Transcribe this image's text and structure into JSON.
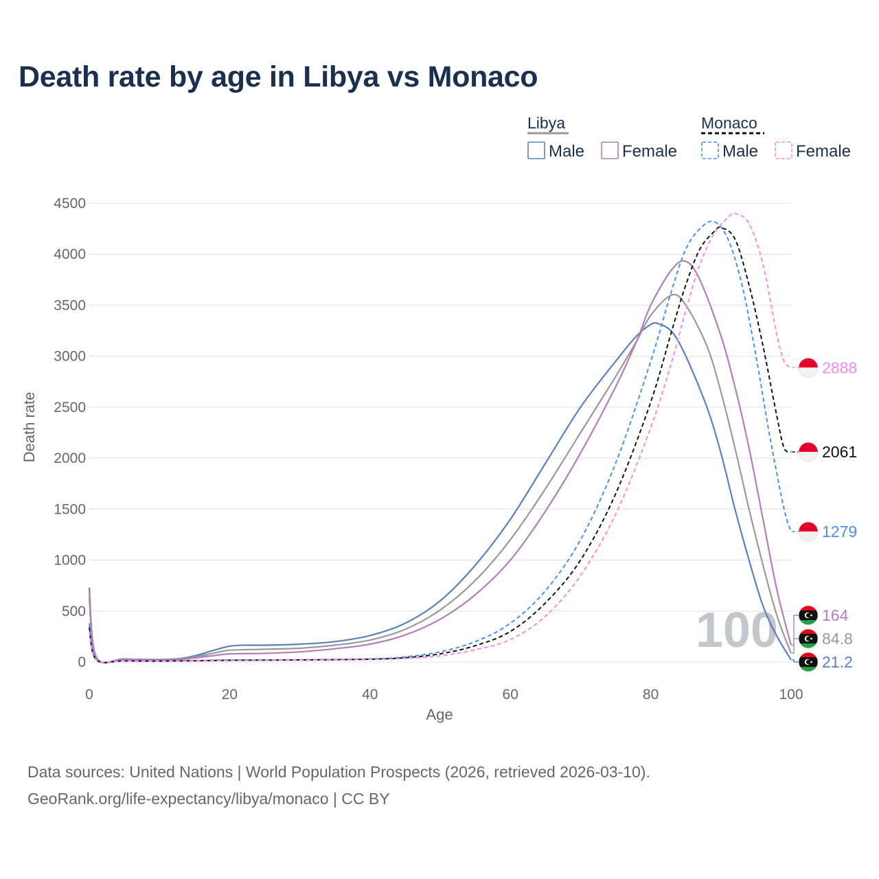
{
  "title": "Death rate by age in Libya vs Monaco",
  "legend": {
    "groups": [
      {
        "name": "Libya",
        "line_color": "#999999",
        "dashed": false,
        "items": [
          {
            "label": "Male",
            "color": "#5b80bc"
          },
          {
            "label": "Female",
            "color": "#b07fb8"
          }
        ]
      },
      {
        "name": "Monaco",
        "line_color": "#111111",
        "dashed": true,
        "items": [
          {
            "label": "Male",
            "color": "#4c8fe8"
          },
          {
            "label": "Female",
            "color": "#f28ce6"
          }
        ]
      }
    ]
  },
  "watermark": "100",
  "footer": {
    "line1": "Data sources: United Nations | World Population Prospects (2026, retrieved 2026-03-10).",
    "line2": "GeoRank.org/life-expectancy/libya/monaco | CC BY"
  },
  "chart_data": {
    "type": "line",
    "xlabel": "Age",
    "ylabel": "Death rate",
    "xlim": [
      0,
      100
    ],
    "ylim": [
      0,
      4500
    ],
    "xticks": [
      0,
      20,
      40,
      60,
      80,
      100
    ],
    "yticks": [
      0,
      500,
      1000,
      1500,
      2000,
      2500,
      3000,
      3500,
      4000,
      4500
    ],
    "grid": true,
    "series": [
      {
        "name": "Libya Male",
        "color": "#5b80bc",
        "dashed": false,
        "end_label": "21.2",
        "flag": "libya",
        "points": [
          [
            0,
            730
          ],
          [
            1,
            50
          ],
          [
            5,
            30
          ],
          [
            10,
            25
          ],
          [
            13,
            35
          ],
          [
            15,
            60
          ],
          [
            18,
            120
          ],
          [
            20,
            155
          ],
          [
            22,
            165
          ],
          [
            25,
            165
          ],
          [
            30,
            175
          ],
          [
            35,
            200
          ],
          [
            40,
            260
          ],
          [
            45,
            380
          ],
          [
            50,
            600
          ],
          [
            55,
            950
          ],
          [
            60,
            1400
          ],
          [
            65,
            1950
          ],
          [
            70,
            2500
          ],
          [
            75,
            2950
          ],
          [
            78,
            3200
          ],
          [
            80,
            3310
          ],
          [
            81,
            3320
          ],
          [
            83,
            3240
          ],
          [
            85,
            3000
          ],
          [
            88,
            2500
          ],
          [
            90,
            2050
          ],
          [
            92,
            1500
          ],
          [
            94,
            1000
          ],
          [
            96,
            550
          ],
          [
            98,
            250
          ],
          [
            100,
            21.2
          ]
        ]
      },
      {
        "name": "Libya Total",
        "color": "#999999",
        "dashed": false,
        "end_label": "84.8",
        "flag": "libya",
        "points": [
          [
            0,
            680
          ],
          [
            1,
            45
          ],
          [
            5,
            28
          ],
          [
            10,
            22
          ],
          [
            13,
            30
          ],
          [
            15,
            50
          ],
          [
            18,
            90
          ],
          [
            20,
            115
          ],
          [
            25,
            125
          ],
          [
            30,
            135
          ],
          [
            35,
            165
          ],
          [
            40,
            215
          ],
          [
            45,
            320
          ],
          [
            50,
            510
          ],
          [
            55,
            800
          ],
          [
            60,
            1200
          ],
          [
            65,
            1700
          ],
          [
            70,
            2250
          ],
          [
            75,
            2800
          ],
          [
            78,
            3150
          ],
          [
            80,
            3400
          ],
          [
            83,
            3600
          ],
          [
            85,
            3500
          ],
          [
            88,
            3100
          ],
          [
            90,
            2650
          ],
          [
            92,
            2100
          ],
          [
            94,
            1500
          ],
          [
            96,
            950
          ],
          [
            98,
            450
          ],
          [
            100,
            84.8
          ]
        ]
      },
      {
        "name": "Libya Female",
        "color": "#b07fb8",
        "dashed": false,
        "end_label": "164",
        "flag": "libya",
        "points": [
          [
            0,
            630
          ],
          [
            1,
            40
          ],
          [
            5,
            25
          ],
          [
            10,
            20
          ],
          [
            13,
            25
          ],
          [
            15,
            40
          ],
          [
            18,
            65
          ],
          [
            20,
            80
          ],
          [
            25,
            85
          ],
          [
            30,
            100
          ],
          [
            35,
            130
          ],
          [
            40,
            175
          ],
          [
            45,
            265
          ],
          [
            50,
            420
          ],
          [
            55,
            660
          ],
          [
            60,
            1000
          ],
          [
            65,
            1480
          ],
          [
            70,
            2050
          ],
          [
            75,
            2700
          ],
          [
            78,
            3150
          ],
          [
            80,
            3500
          ],
          [
            83,
            3850
          ],
          [
            85,
            3930
          ],
          [
            87,
            3750
          ],
          [
            90,
            3200
          ],
          [
            92,
            2700
          ],
          [
            94,
            2100
          ],
          [
            96,
            1400
          ],
          [
            98,
            700
          ],
          [
            100,
            164
          ]
        ]
      },
      {
        "name": "Monaco Male",
        "color": "#4c8fe8",
        "dashed": true,
        "end_label": "1279",
        "flag": "monaco",
        "points": [
          [
            0,
            380
          ],
          [
            1,
            25
          ],
          [
            5,
            12
          ],
          [
            10,
            10
          ],
          [
            15,
            14
          ],
          [
            20,
            20
          ],
          [
            30,
            22
          ],
          [
            40,
            30
          ],
          [
            45,
            50
          ],
          [
            50,
            100
          ],
          [
            55,
            200
          ],
          [
            60,
            380
          ],
          [
            65,
            700
          ],
          [
            70,
            1200
          ],
          [
            75,
            1950
          ],
          [
            80,
            2950
          ],
          [
            83,
            3650
          ],
          [
            85,
            4050
          ],
          [
            87,
            4250
          ],
          [
            89,
            4320
          ],
          [
            91,
            4150
          ],
          [
            93,
            3700
          ],
          [
            95,
            3000
          ],
          [
            97,
            2200
          ],
          [
            99,
            1500
          ],
          [
            100,
            1279
          ]
        ]
      },
      {
        "name": "Monaco Total",
        "color": "#111111",
        "dashed": true,
        "end_label": "2061",
        "flag": "monaco",
        "points": [
          [
            0,
            340
          ],
          [
            1,
            22
          ],
          [
            5,
            11
          ],
          [
            10,
            9
          ],
          [
            15,
            12
          ],
          [
            20,
            17
          ],
          [
            30,
            20
          ],
          [
            40,
            27
          ],
          [
            45,
            42
          ],
          [
            50,
            80
          ],
          [
            55,
            160
          ],
          [
            60,
            300
          ],
          [
            65,
            580
          ],
          [
            70,
            1000
          ],
          [
            75,
            1650
          ],
          [
            80,
            2550
          ],
          [
            83,
            3250
          ],
          [
            85,
            3700
          ],
          [
            87,
            4050
          ],
          [
            89,
            4220
          ],
          [
            90,
            4260
          ],
          [
            92,
            4150
          ],
          [
            94,
            3700
          ],
          [
            96,
            3100
          ],
          [
            98,
            2400
          ],
          [
            99,
            2100
          ],
          [
            100,
            2061
          ]
        ]
      },
      {
        "name": "Monaco Female",
        "color": "#f28ce6",
        "dashed": true,
        "end_label": "2888",
        "flag": "monaco",
        "points": [
          [
            0,
            300
          ],
          [
            1,
            20
          ],
          [
            5,
            10
          ],
          [
            10,
            8
          ],
          [
            15,
            10
          ],
          [
            20,
            14
          ],
          [
            30,
            18
          ],
          [
            40,
            24
          ],
          [
            45,
            35
          ],
          [
            50,
            60
          ],
          [
            55,
            120
          ],
          [
            60,
            220
          ],
          [
            65,
            450
          ],
          [
            70,
            850
          ],
          [
            75,
            1450
          ],
          [
            80,
            2300
          ],
          [
            83,
            2950
          ],
          [
            85,
            3450
          ],
          [
            87,
            3900
          ],
          [
            89,
            4200
          ],
          [
            91,
            4360
          ],
          [
            92,
            4400
          ],
          [
            94,
            4300
          ],
          [
            96,
            3900
          ],
          [
            98,
            3200
          ],
          [
            99,
            2950
          ],
          [
            100,
            2888
          ]
        ]
      }
    ]
  }
}
